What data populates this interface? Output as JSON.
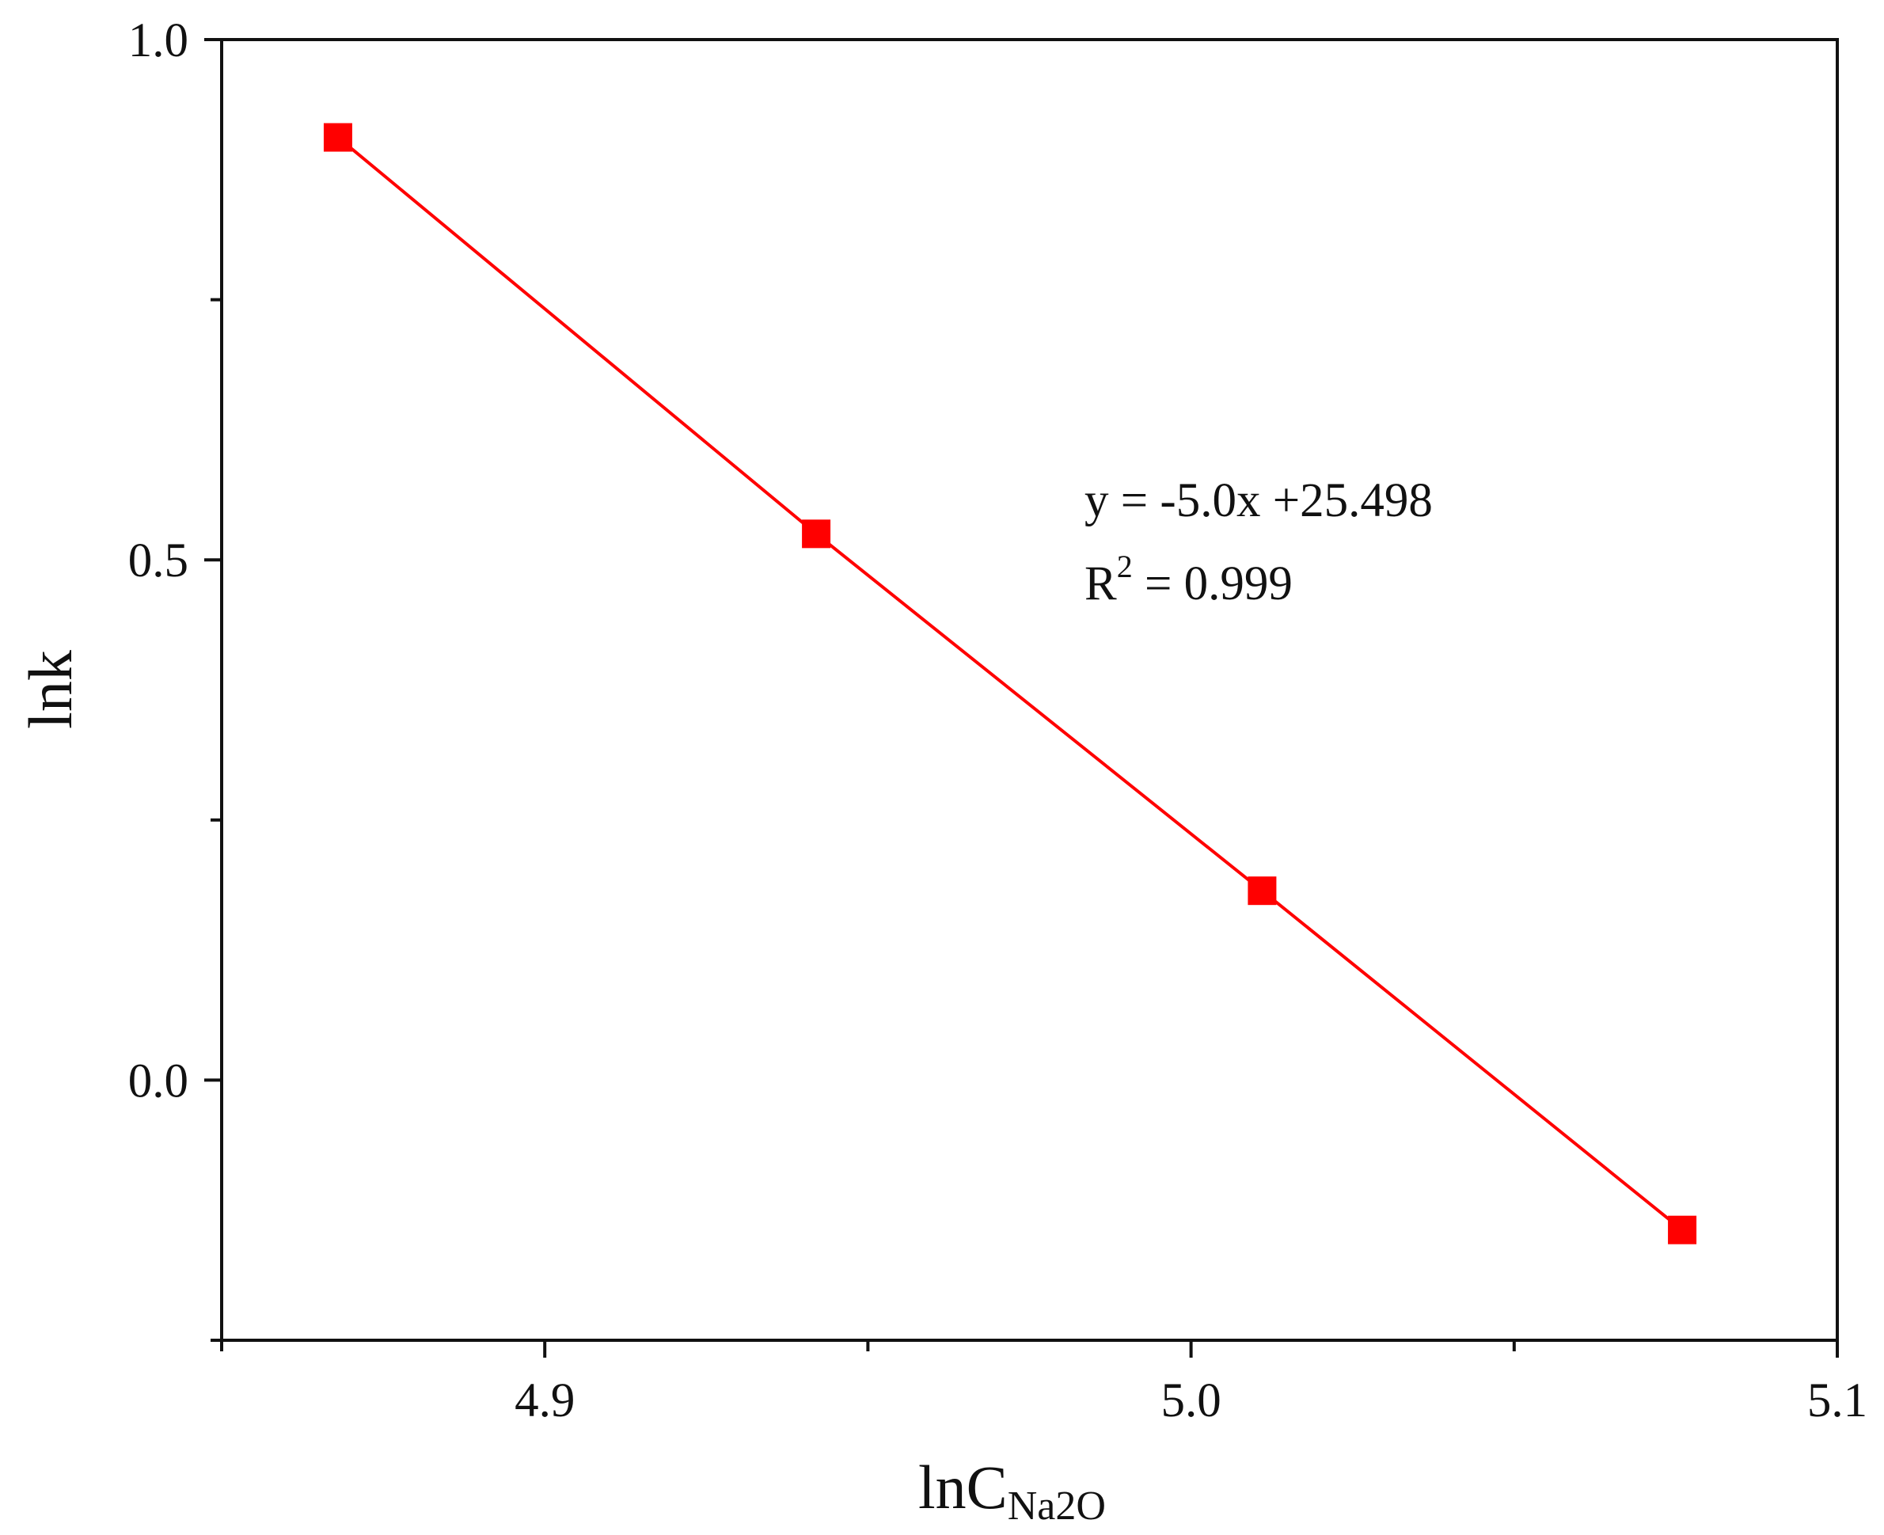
{
  "chart_data": {
    "type": "line",
    "xlabel_main": "lnC",
    "xlabel_sub": "Na2O",
    "ylabel": "lnk",
    "xlim": [
      4.85,
      5.1
    ],
    "ylim": [
      -0.25,
      1.0
    ],
    "x_ticks": [
      {
        "value": 4.9,
        "label": "4.9"
      },
      {
        "value": 5.0,
        "label": "5.0"
      },
      {
        "value": 5.1,
        "label": "5.1"
      }
    ],
    "x_minor_ticks": [
      4.85,
      4.95,
      5.05
    ],
    "y_ticks": [
      {
        "value": 0.0,
        "label": "0.0"
      },
      {
        "value": 0.5,
        "label": "0.5"
      },
      {
        "value": 1.0,
        "label": "1.0"
      }
    ],
    "y_minor_ticks": [
      -0.25,
      0.25,
      0.75
    ],
    "series": [
      {
        "x": [
          4.868,
          4.942,
          5.011,
          5.076
        ],
        "y": [
          0.906,
          0.525,
          0.182,
          -0.144
        ],
        "color": "#ff0000",
        "marker": "square"
      }
    ],
    "annotation": {
      "equation": "y = -5.0x +25.498",
      "r2_label": "R",
      "r2_sup": "2",
      "r2_value": " = 0.999"
    },
    "grid": false
  }
}
